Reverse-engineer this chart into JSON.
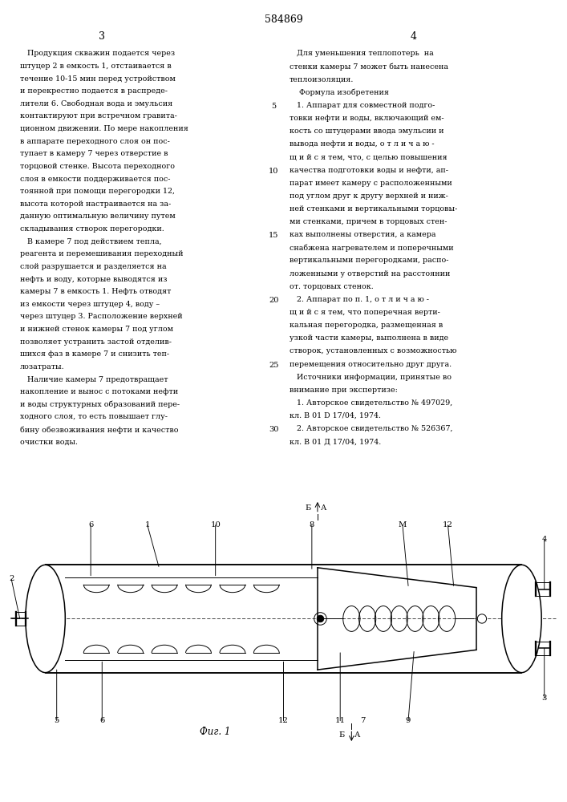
{
  "title": "584869",
  "page_left": "3",
  "page_right": "4",
  "fig_label": "Фиг. 1",
  "background_color": "#ffffff",
  "line_color": "#000000",
  "left_lines": [
    "   Продукция скважин подается через",
    "штуцер 2 в емкость 1, отстаивается в",
    "течение 10-15 мин перед устройством",
    "и перекрестно подается в распреде-",
    "лители 6. Свободная вода и эмульсия",
    "контактируют при встречном гравита-",
    "ционном движении. По мере накопления",
    "в аппарате переходного слоя он пос-",
    "тупает в камеру 7 через отверстие в",
    "торцовой стенке. Высота переходного",
    "слоя в емкости поддерживается пос-",
    "тоянной при помощи перегородки 12,",
    "высота которой настраивается на за-",
    "данную оптимальную величину путем",
    "складывания створок перегородки.",
    "   В камере 7 под действием тепла,",
    "реагента и перемешивания переходный",
    "слой разрушается и разделяется на",
    "нефть и воду, которые выводятся из",
    "камеры 7 в емкость 1. Нефть отводят",
    "из емкости через штуцер 4, воду –",
    "через штуцер 3. Расположение верхней",
    "и нижней стенок камеры 7 под углом",
    "позволяет устранить застой отделив-",
    "шихся фаз в камере 7 и снизить теп-",
    "лозатраты.",
    "   Наличие камеры 7 предотвращает",
    "накопление и вынос с потоками нефти",
    "и воды структурных образований пере-",
    "ходного слоя, то есть повышает глу-",
    "бину обезвоживания нефти и качество",
    "очистки воды."
  ],
  "right_lines": [
    "   Для уменьшения теплопотерь  на",
    "стенки камеры 7 может быть нанесена",
    "теплоизоляция.",
    "    Формула изобретения",
    "   1. Аппарат для совместной подго-",
    "товки нефти и воды, включающий ем-",
    "кость со штуцерами ввода эмульсии и",
    "вывода нефти и воды, о т л и ч а ю -",
    "щ и й с я тем, что, с целью повышения",
    "качества подготовки воды и нефти, ап-",
    "парат имеет камеру с расположенными",
    "под углом друг к другу верхней и ниж-",
    "ней стенками и вертикальными торцовы-",
    "ми стенками, причем в торцовых стен-",
    "ках выполнены отверстия, а камера",
    "снабжена нагревателем и поперечными",
    "вертикальными перегородками, распо-",
    "ложенными у отверстий на расстоянии",
    "от. торцовых стенок.",
    "   2. Аппарат по п. 1, о т л и ч а ю -",
    "щ и й с я тем, что поперечная верти-",
    "кальная перегородка, размещенная в",
    "узкой части камеры, выполнена в виде",
    "створок, установленных с возможностью",
    "перемещения относительно друг друга.",
    "   Источники информации, принятые во",
    "внимание при экспертизе:",
    "   1. Авторское свидетельство № 497029,",
    "кл. В 01 D 17/04, 1974.",
    "   2. Авторское свидетельство № 526367,",
    "кл. В 01 Д 17/04, 1974."
  ],
  "line_numbers": [
    5,
    10,
    15,
    20,
    25,
    30
  ]
}
